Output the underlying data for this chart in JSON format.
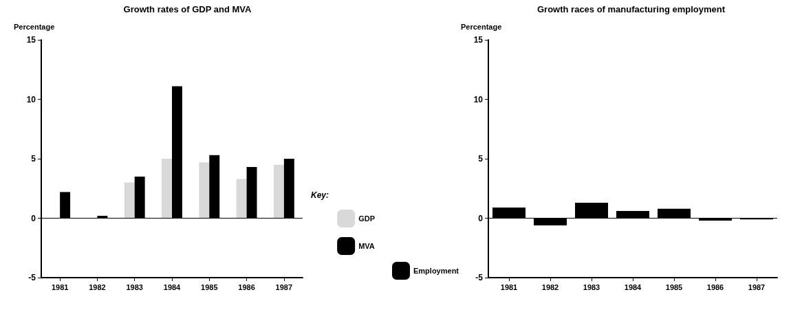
{
  "chart_data": [
    {
      "type": "bar",
      "title": "Growth rates of GDP and MVA",
      "ylabel": "Percentage",
      "categories": [
        "1981",
        "1982",
        "1983",
        "1984",
        "1985",
        "1986",
        "1987"
      ],
      "series": [
        {
          "name": "GDP",
          "color": "#d9d9d9",
          "values": [
            null,
            null,
            3.0,
            5.0,
            4.7,
            3.3,
            4.5
          ]
        },
        {
          "name": "MVA",
          "color": "#000000",
          "values": [
            2.2,
            0.2,
            3.5,
            11.1,
            5.3,
            4.3,
            5.0
          ]
        }
      ],
      "ylim": [
        -5,
        15
      ],
      "yticks": [
        -5,
        0,
        5,
        10,
        15
      ],
      "grid": false,
      "legend": "right",
      "legend_title": "Key:",
      "ref_lines": [
        {
          "axis": "y",
          "value": 0
        }
      ]
    },
    {
      "type": "bar",
      "title": "Growth races of manufacturing employment",
      "ylabel": "Percentage",
      "categories": [
        "1981",
        "1982",
        "1983",
        "1984",
        "1985",
        "1986",
        "1987"
      ],
      "series": [
        {
          "name": "Employment",
          "color": "#000000",
          "values": [
            0.9,
            -0.6,
            1.3,
            0.6,
            0.8,
            -0.2,
            -0.1
          ]
        }
      ],
      "ylim": [
        -5,
        15
      ],
      "yticks": [
        -5,
        0,
        5,
        10,
        15
      ],
      "grid": false,
      "legend": "left",
      "ref_lines": [
        {
          "axis": "y",
          "value": 0
        }
      ]
    }
  ]
}
